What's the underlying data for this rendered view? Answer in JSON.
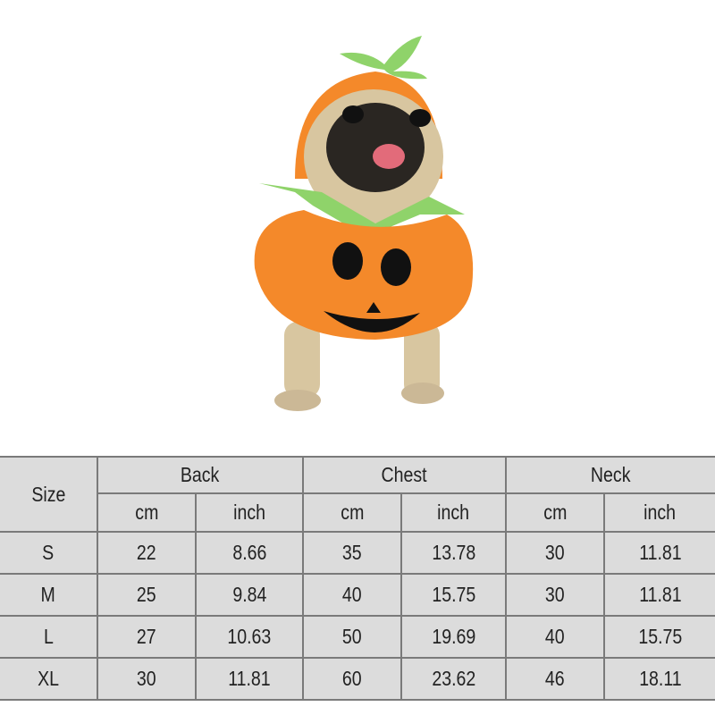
{
  "product_image": {
    "subject": "pug-in-pumpkin-costume",
    "colors": {
      "costume": "#f4892a",
      "leaves": "#8fd36a",
      "face": "#111111"
    }
  },
  "size_chart": {
    "size_header": "Size",
    "groups": [
      "Back",
      "Chest",
      "Neck"
    ],
    "units": [
      "cm",
      "inch",
      "cm",
      "inch",
      "cm",
      "inch"
    ],
    "rows": [
      {
        "size": "S",
        "values": [
          "22",
          "8.66",
          "35",
          "13.78",
          "30",
          "11.81"
        ]
      },
      {
        "size": "M",
        "values": [
          "25",
          "9.84",
          "40",
          "15.75",
          "30",
          "11.81"
        ]
      },
      {
        "size": "L",
        "values": [
          "27",
          "10.63",
          "50",
          "19.69",
          "40",
          "15.75"
        ]
      },
      {
        "size": "XL",
        "values": [
          "30",
          "11.81",
          "60",
          "23.62",
          "46",
          "18.11"
        ]
      }
    ],
    "colors": {
      "cell_bg": "#dcdcdc",
      "border": "#7a7a7a"
    }
  }
}
